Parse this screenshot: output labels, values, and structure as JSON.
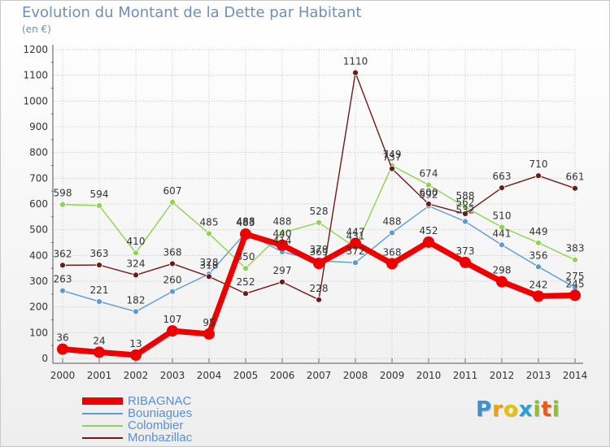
{
  "header": {
    "title": "Evolution du Montant de la Dette par Habitant",
    "unit": "(en €)"
  },
  "logo": {
    "text": "Proxiti"
  },
  "chart_data": {
    "type": "line",
    "title": "Evolution du Montant de la Dette par Habitant",
    "subtitle": "(en €)",
    "x": [
      2000,
      2001,
      2002,
      2003,
      2004,
      2005,
      2006,
      2007,
      2008,
      2009,
      2010,
      2011,
      2012,
      2013,
      2014
    ],
    "x_tick_labels": [
      "2000",
      "2001",
      "2002",
      "2003",
      "2004",
      "2005",
      "2006",
      "2007",
      "2008",
      "2009",
      "2010",
      "2011",
      "2012",
      "2013",
      "2014"
    ],
    "y_ticks": [
      0,
      100,
      200,
      300,
      400,
      500,
      600,
      700,
      800,
      900,
      1000,
      1100,
      1200
    ],
    "ylim": [
      0,
      1200
    ],
    "grid": "horizontal and vertical dotted",
    "legend_position": "bottom-left",
    "series": [
      {
        "name": "RIBAGNAC",
        "color": "#ee0000",
        "emphasis": true,
        "values": [
          36,
          24,
          13,
          107,
          95,
          483,
          440,
          369,
          447,
          368,
          452,
          373,
          298,
          242,
          245
        ]
      },
      {
        "name": "Bouniagues",
        "color": "#5b9bd5",
        "emphasis": false,
        "values": [
          263,
          221,
          182,
          260,
          328,
          488,
          414,
          379,
          372,
          488,
          592,
          532,
          441,
          356,
          275
        ]
      },
      {
        "name": "Colombier",
        "color": "#8ed44c",
        "emphasis": false,
        "values": [
          598,
          594,
          410,
          607,
          485,
          350,
          488,
          528,
          431,
          749,
          674,
          588,
          510,
          449,
          383
        ]
      },
      {
        "name": "Monbazillac",
        "color": "#6e1a1a",
        "emphasis": false,
        "values": [
          362,
          363,
          324,
          368,
          318,
          252,
          297,
          228,
          1110,
          737,
          600,
          562,
          663,
          710,
          661
        ]
      }
    ]
  }
}
